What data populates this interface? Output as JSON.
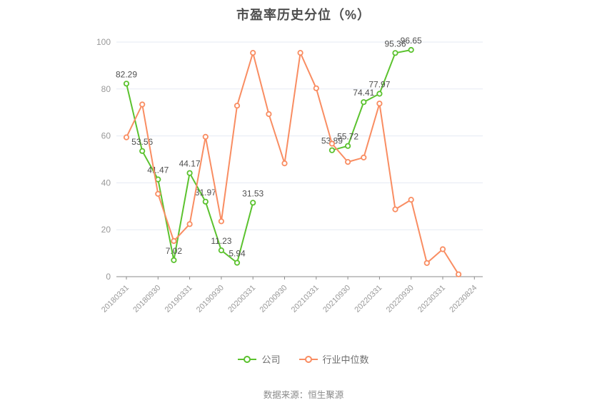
{
  "title": "市盈率历史分位（%）",
  "legend": {
    "items": [
      {
        "label": "公司",
        "color": "#5bc22e"
      },
      {
        "label": "行业中位数",
        "color": "#f98d62"
      }
    ]
  },
  "footer": {
    "source": "数据来源：恒生聚源"
  },
  "colors": {
    "company_green": "#5bc22e",
    "industry_orange": "#f98d62",
    "gridline": "#e5eaf3",
    "axis_line": "#8b8b8b",
    "tick_label": "#999999",
    "data_label": "#4f4f4f"
  },
  "chart_data": {
    "type": "line",
    "title": "市盈率历史分位（%）",
    "xlabel": "",
    "ylabel": "",
    "ylim": [
      0,
      100
    ],
    "y_ticks": [
      0,
      20,
      40,
      60,
      80,
      100
    ],
    "grid": "horizontal",
    "legend_position": "bottom",
    "slots": 23,
    "label_every": 2,
    "x_tick_labels": [
      "20180331",
      "20180930",
      "20190331",
      "20190930",
      "20200331",
      "20200930",
      "20210331",
      "20210930",
      "20220331",
      "20220930",
      "20230331",
      "20230824"
    ],
    "series": [
      {
        "name": "公司",
        "color": "#5bc22e",
        "show_point_labels": true,
        "values": [
          82.29,
          53.56,
          41.47,
          7.02,
          44.17,
          31.97,
          11.23,
          5.94,
          31.53,
          null,
          null,
          null,
          null,
          53.89,
          55.72,
          74.41,
          77.97,
          95.36,
          96.65,
          null,
          null,
          null,
          null
        ]
      },
      {
        "name": "行业中位数",
        "color": "#f98d62",
        "show_point_labels": false,
        "values": [
          59.4,
          73.4,
          35.3,
          15.2,
          22.4,
          59.6,
          23.6,
          72.9,
          95.4,
          69.3,
          48.3,
          95.4,
          80.3,
          56.7,
          48.9,
          50.8,
          73.8,
          28.7,
          32.8,
          5.8,
          11.7,
          1.0,
          null
        ]
      }
    ]
  }
}
